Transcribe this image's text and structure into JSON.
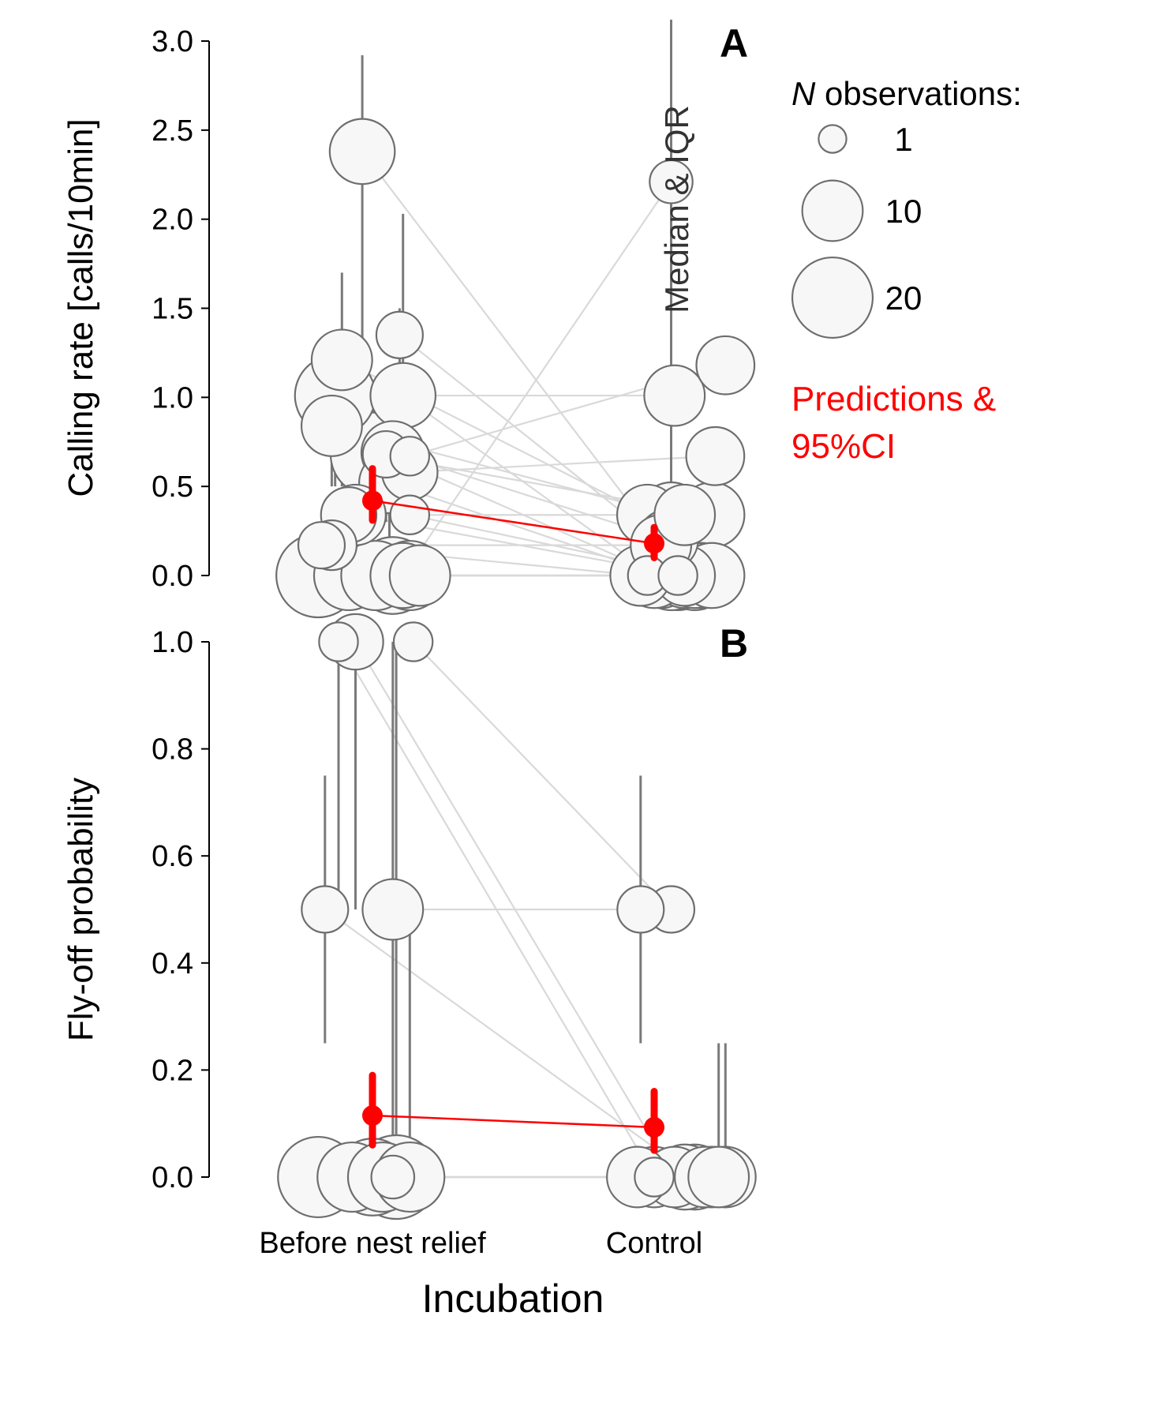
{
  "chart_data": [
    {
      "panel": "A",
      "type": "scatter",
      "ylabel": "Calling rate [calls/10min]",
      "ylim": [
        0,
        3
      ],
      "yticks": [
        "0.0",
        "0.5",
        "1.0",
        "1.5",
        "2.0",
        "2.5",
        "3.0"
      ],
      "categories": [
        "Before nest relief",
        "Control"
      ],
      "individuals": [
        {
          "before": {
            "x": 0.97,
            "y": 2.38,
            "n": 12,
            "lo": 0.0,
            "hi": 2.92
          },
          "control": {
            "x": 0.09,
            "y": 0.0,
            "n": 10
          }
        },
        {
          "before": {
            "x": 0.91,
            "y": 1.21,
            "n": 10,
            "lo": 0.5,
            "hi": 1.7
          },
          "control": {
            "x": -0.02,
            "y": 0.34,
            "n": 10
          }
        },
        {
          "before": {
            "x": 0.89,
            "y": 1.01,
            "n": 20,
            "lo": 0.5,
            "hi": 1.2
          },
          "control": {
            "x": 0.06,
            "y": 1.01,
            "n": 10
          }
        },
        {
          "before": {
            "x": 0.88,
            "y": 0.84,
            "n": 10,
            "lo": 0.5,
            "hi": 1.1
          },
          "control": {
            "x": 0.05,
            "y": 0.34,
            "n": 12
          }
        },
        {
          "before": {
            "x": 1.0,
            "y": 0.68,
            "n": 22,
            "lo": 0.3,
            "hi": 1.0
          },
          "control": {
            "x": 0.17,
            "y": 0.34,
            "n": 12
          }
        },
        {
          "before": {
            "x": 1.04,
            "y": 0.68,
            "n": 5,
            "lo": 0.3,
            "hi": 0.9
          },
          "control": {
            "x": 0.02,
            "y": 0.0,
            "n": 12
          }
        },
        {
          "before": {
            "x": 1.06,
            "y": 0.69,
            "n": 11,
            "lo": 0.35,
            "hi": 1.0
          },
          "control": {
            "x": 0.04,
            "y": 0.2,
            "n": 10
          }
        },
        {
          "before": {
            "x": 1.05,
            "y": 0.52,
            "n": 10,
            "lo": 0.2,
            "hi": 0.9
          },
          "control": {
            "x": 0.02,
            "y": 0.0,
            "n": 12
          }
        },
        {
          "before": {
            "x": 0.95,
            "y": 0.34,
            "n": 10,
            "lo": 0.0,
            "hi": 0.6
          },
          "control": {
            "x": 0.09,
            "y": 0.0,
            "n": 12
          }
        },
        {
          "before": {
            "x": 1.08,
            "y": 1.35,
            "n": 5,
            "lo": 0.9,
            "hi": 1.5
          },
          "control": {
            "x": 0.14,
            "y": 0.0,
            "n": 12
          }
        },
        {
          "before": {
            "x": 1.09,
            "y": 1.01,
            "n": 12,
            "lo": 0.5,
            "hi": 2.03
          },
          "control": {
            "x": 0.0,
            "y": 0.0,
            "n": 12
          }
        },
        {
          "before": {
            "x": 1.11,
            "y": 0.67,
            "n": 3,
            "lo": 0.4,
            "hi": 0.76
          },
          "control": {
            "x": 0.21,
            "y": 1.18,
            "n": 9
          }
        },
        {
          "before": {
            "x": 1.11,
            "y": 0.58,
            "n": 8,
            "lo": 0.35,
            "hi": 0.7
          },
          "control": {
            "x": 0.18,
            "y": 0.67,
            "n": 9
          }
        },
        {
          "before": {
            "x": 1.11,
            "y": 0.34,
            "n": 3,
            "lo": 0.3,
            "hi": 0.4
          },
          "control": {
            "x": 0.12,
            "y": 0.0,
            "n": 12
          }
        },
        {
          "before": {
            "x": 0.85,
            "y": 0.17,
            "n": 5,
            "lo": 0.0,
            "hi": 0.3
          },
          "control": {
            "x": -0.04,
            "y": 0.0,
            "n": 10
          }
        },
        {
          "before": {
            "x": 0.88,
            "y": 0.17,
            "n": 6,
            "lo": 0.0,
            "hi": 0.3
          },
          "control": {
            "x": 0.02,
            "y": 0.17,
            "n": 10
          }
        },
        {
          "before": {
            "x": 0.84,
            "y": 0.0,
            "n": 22,
            "lo": 0.0,
            "hi": 0.0
          },
          "control": {
            "x": 0.07,
            "y": 0.0,
            "n": 14
          }
        },
        {
          "before": {
            "x": 0.93,
            "y": 0.0,
            "n": 14,
            "lo": 0.0,
            "hi": 0.0
          },
          "control": {
            "x": 0.12,
            "y": 0.0,
            "n": 14
          }
        },
        {
          "before": {
            "x": 1.01,
            "y": 0.0,
            "n": 14,
            "lo": 0.0,
            "hi": 0.0
          },
          "control": {
            "x": -0.02,
            "y": 0.0,
            "n": 3
          }
        },
        {
          "before": {
            "x": 1.06,
            "y": 0.0,
            "n": 18,
            "lo": 0.0,
            "hi": 0.0
          },
          "control": {
            "x": 0.05,
            "y": 0.0,
            "n": 14
          }
        },
        {
          "before": {
            "x": 1.11,
            "y": 0.0,
            "n": 14,
            "lo": 0.0,
            "hi": 0.0
          },
          "control": {
            "x": 0.17,
            "y": 0.0,
            "n": 12
          }
        },
        {
          "before": {
            "x": 1.14,
            "y": 0.0,
            "n": 10,
            "lo": 0.0,
            "hi": 0.0
          },
          "control": {
            "x": 0.07,
            "y": 0.0,
            "n": 3
          }
        },
        {
          "before": {
            "x": 0.93,
            "y": 0.34,
            "n": 8,
            "lo": 0.0,
            "hi": 0.55
          },
          "control": {
            "x": 0.09,
            "y": 0.34,
            "n": 10
          }
        },
        {
          "before": {
            "x": 1.09,
            "y": 0.0,
            "n": 12,
            "lo": 0.0,
            "hi": 0.0
          },
          "control": {
            "x": 0.05,
            "y": 2.21,
            "n": 4,
            "lo": 0.0,
            "hi": 3.12
          }
        }
      ],
      "prediction": {
        "before": {
          "x": 1.0,
          "y": 0.42,
          "lo": 0.31,
          "hi": 0.6
        },
        "control": {
          "x": 0.0,
          "y": 0.18,
          "lo": 0.1,
          "hi": 0.27
        }
      }
    },
    {
      "panel": "B",
      "type": "scatter",
      "ylabel": "Fly-off probability",
      "ylim": [
        0,
        1
      ],
      "yticks": [
        "0.0",
        "0.2",
        "0.4",
        "0.6",
        "0.8",
        "1.0"
      ],
      "categories": [
        "Before nest relief",
        "Control"
      ],
      "individuals": [
        {
          "before": {
            "x": 0.9,
            "y": 1.0,
            "n": 3,
            "lo": 0.5,
            "hi": 1.0
          },
          "control": {
            "x": 0.0,
            "y": 0.0,
            "n": 10
          }
        },
        {
          "before": {
            "x": 0.95,
            "y": 1.0,
            "n": 8,
            "lo": 0.5,
            "hi": 1.0
          },
          "control": {
            "x": 0.06,
            "y": 0.0,
            "n": 10
          }
        },
        {
          "before": {
            "x": 1.12,
            "y": 1.0,
            "n": 3,
            "lo": 1.0,
            "hi": 1.0
          },
          "control": {
            "x": 0.05,
            "y": 0.5,
            "n": 5
          }
        },
        {
          "before": {
            "x": 0.86,
            "y": 0.5,
            "n": 5,
            "lo": 0.25,
            "hi": 0.75
          },
          "control": {
            "x": 0.12,
            "y": 0.0,
            "n": 12
          }
        },
        {
          "before": {
            "x": 1.06,
            "y": 0.5,
            "n": 10,
            "lo": 0.0,
            "hi": 1.0
          },
          "control": {
            "x": -0.04,
            "y": 0.5,
            "n": 5,
            "lo": 0.25,
            "hi": 0.75
          }
        },
        {
          "before": {
            "x": 0.84,
            "y": 0.0,
            "n": 20,
            "lo": 0.0,
            "hi": 0.0
          },
          "control": {
            "x": 0.17,
            "y": 0.0,
            "n": 10
          }
        },
        {
          "before": {
            "x": 0.94,
            "y": 0.0,
            "n": 14,
            "lo": 0.0,
            "hi": 0.0
          },
          "control": {
            "x": -0.05,
            "y": 0.0,
            "n": 10
          }
        },
        {
          "before": {
            "x": 1.0,
            "y": 0.0,
            "n": 18,
            "lo": 0.0,
            "hi": 0.0
          },
          "control": {
            "x": 0.09,
            "y": 0.0,
            "n": 12
          }
        },
        {
          "before": {
            "x": 1.03,
            "y": 0.0,
            "n": 14,
            "lo": 0.0,
            "hi": 0.0
          },
          "control": {
            "x": 0.0,
            "y": 0.0,
            "n": 3
          }
        },
        {
          "before": {
            "x": 1.07,
            "y": 0.0,
            "n": 22,
            "lo": 0.0,
            "hi": 1.0
          },
          "control": {
            "x": 0.15,
            "y": 0.0,
            "n": 10
          }
        },
        {
          "before": {
            "x": 1.11,
            "y": 0.0,
            "n": 14,
            "lo": 0.0,
            "hi": 0.5
          },
          "control": {
            "x": 0.21,
            "y": 0.0,
            "n": 10,
            "lo": 0.0,
            "hi": 0.25
          }
        },
        {
          "before": {
            "x": 1.06,
            "y": 0.0,
            "n": 4,
            "lo": 0.0,
            "hi": 0.0
          },
          "control": {
            "x": 0.19,
            "y": 0.0,
            "n": 10,
            "lo": 0.0,
            "hi": 0.25
          }
        }
      ],
      "prediction": {
        "before": {
          "x": 1.0,
          "y": 0.115,
          "lo": 0.06,
          "hi": 0.19
        },
        "control": {
          "x": 0.0,
          "y": 0.093,
          "lo": 0.05,
          "hi": 0.16
        }
      }
    }
  ],
  "panels": [
    {
      "letter": "A",
      "ylabel": "Calling rate [calls/10min]"
    },
    {
      "letter": "B",
      "ylabel": "Fly-off probability"
    }
  ],
  "xaxis": {
    "title": "Incubation",
    "tick_before": "Before nest relief",
    "tick_control": "Control"
  },
  "legend": {
    "title_italic": "N",
    "title_rest": " observations:",
    "sizes": [
      {
        "n": 1,
        "label": "1"
      },
      {
        "n": 10,
        "label": "10"
      },
      {
        "n": 20,
        "label": "20"
      }
    ],
    "pred_line1": "Predictions &",
    "pred_line2": "95%CI"
  },
  "median_label": "Median & IQR",
  "colors": {
    "point_fill": "#f7f7f7",
    "point_stroke": "#6e6e6e",
    "error_bar": "#7a7a7a",
    "connector": "#d9d9d9",
    "prediction": "#ff0000"
  }
}
